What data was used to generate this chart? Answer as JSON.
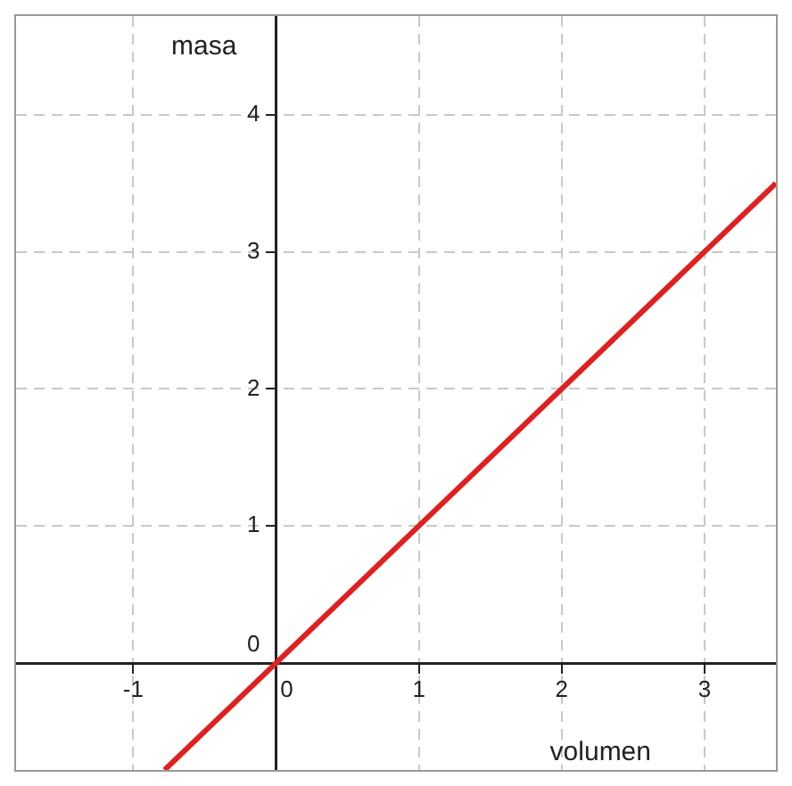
{
  "chart_data": {
    "type": "line",
    "xlabel": "volumen",
    "ylabel": "masa",
    "x": [
      -0.78,
      3.5
    ],
    "series": [
      {
        "color": "#e02020",
        "values": [
          -0.78,
          3.5
        ]
      }
    ],
    "xlim": [
      -1.82,
      3.5
    ],
    "ylim": [
      -0.78,
      4.72
    ],
    "xticks": [
      -1,
      0,
      1,
      2,
      3
    ],
    "yticks": [
      0,
      1,
      2,
      3,
      4
    ],
    "grid": true,
    "marker": "none",
    "line_style": "solid"
  }
}
